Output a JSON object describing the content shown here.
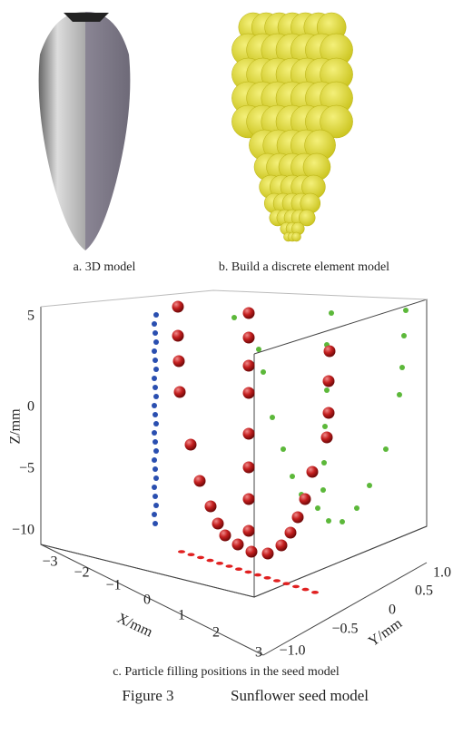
{
  "panels": [
    {
      "caption": "a. 3D model"
    },
    {
      "caption": "b. Build a discrete element model"
    },
    {
      "caption": "c. Particle filling positions in the seed model",
      "axes": {
        "z_label": "Z/mm",
        "z_ticks": [
          "5",
          "0",
          "−5",
          "−10"
        ],
        "x_label": "X/mm",
        "x_ticks": [
          "−3",
          "−2",
          "−1",
          "0",
          "1",
          "2",
          "3"
        ],
        "y_label": "Y/mm",
        "y_ticks": [
          "1.0",
          "0.5",
          "0",
          "−0.5",
          "−1.0"
        ]
      }
    }
  ],
  "figure_caption": {
    "number": "Figure 3",
    "title": "Sunflower seed model"
  }
}
